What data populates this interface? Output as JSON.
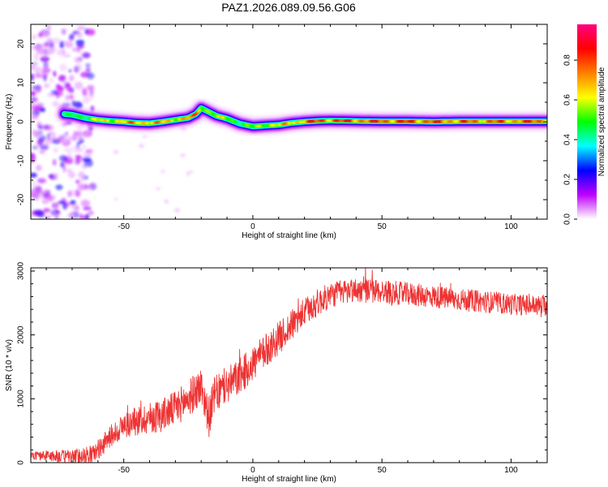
{
  "title": "PAZ1.2026.089.09.56.G06",
  "chart_data": [
    {
      "type": "heatmap",
      "name": "spectrogram",
      "xlabel": "Height of straight line (km)",
      "ylabel": "Frequency (Hz)",
      "xlim": [
        -86,
        114
      ],
      "ylim": [
        -25,
        25
      ],
      "xticks": [
        -50,
        0,
        50,
        100
      ],
      "yticks": [
        -20,
        -10,
        0,
        10,
        20
      ],
      "colorbar": {
        "label": "Normalized spectral amplitude",
        "range": [
          0,
          1
        ],
        "ticks": [
          "0.0",
          "0.2",
          "0.4",
          "0.6",
          "0.8"
        ],
        "stops": [
          "#ffffff",
          "#bf00ff",
          "#0000ff",
          "#00ffff",
          "#00ff00",
          "#ffff00",
          "#ff7f00",
          "#ff0000",
          "#ff0080"
        ]
      },
      "ridge": {
        "x": [
          -73,
          -70,
          -65,
          -60,
          -55,
          -50,
          -45,
          -40,
          -35,
          -30,
          -25,
          -22,
          -20,
          -17,
          -14,
          -10,
          -5,
          0,
          5,
          10,
          15,
          20,
          25,
          30,
          40,
          50,
          60,
          70,
          80,
          90,
          100,
          110,
          114
        ],
        "y": [
          2.0,
          1.8,
          1.0,
          0.5,
          0.2,
          0.0,
          -0.3,
          -0.4,
          0.0,
          0.5,
          1.0,
          2.0,
          3.5,
          2.5,
          1.5,
          0.8,
          -0.5,
          -1.2,
          -1.0,
          -0.8,
          -0.3,
          0.0,
          0.2,
          0.3,
          0.2,
          0.1,
          0.1,
          0.0,
          0.1,
          0.1,
          0.1,
          0.1,
          0.1
        ],
        "amplitude": [
          0.45,
          0.55,
          0.6,
          0.7,
          0.75,
          0.8,
          0.85,
          0.85,
          0.8,
          0.8,
          0.85,
          0.85,
          0.75,
          0.7,
          0.7,
          0.65,
          0.6,
          0.6,
          0.7,
          0.75,
          0.8,
          0.9,
          0.95,
          0.95,
          0.95,
          0.95,
          0.95,
          0.95,
          0.9,
          0.9,
          0.9,
          0.95,
          0.95
        ]
      },
      "noise_region_x": [
        -86,
        -62
      ]
    },
    {
      "type": "line",
      "name": "snr",
      "xlabel": "Height of straight line (km)",
      "ylabel": "SNR (10 * v/v)",
      "xlim": [
        -86,
        114
      ],
      "ylim": [
        0,
        3050
      ],
      "xticks": [
        -50,
        0,
        50,
        100
      ],
      "yticks": [
        0,
        1000,
        2000,
        3000
      ],
      "color": "#ee3333",
      "trend": {
        "x": [
          -86,
          -80,
          -70,
          -62,
          -58,
          -55,
          -50,
          -45,
          -40,
          -35,
          -30,
          -25,
          -20,
          -17,
          -15,
          -10,
          -5,
          0,
          5,
          10,
          15,
          20,
          25,
          30,
          35,
          40,
          50,
          60,
          70,
          80,
          90,
          100,
          110,
          114
        ],
        "y": [
          110,
          110,
          90,
          130,
          280,
          420,
          580,
          650,
          700,
          750,
          850,
          1000,
          1200,
          700,
          1050,
          1200,
          1350,
          1550,
          1750,
          1950,
          2150,
          2350,
          2500,
          2620,
          2680,
          2700,
          2680,
          2640,
          2600,
          2550,
          2520,
          2480,
          2460,
          2460
        ]
      },
      "noise_amplitude": {
        "x": [
          -86,
          -60,
          -40,
          -20,
          0,
          30,
          60,
          114
        ],
        "y": [
          60,
          150,
          250,
          300,
          280,
          200,
          180,
          160
        ]
      }
    }
  ]
}
